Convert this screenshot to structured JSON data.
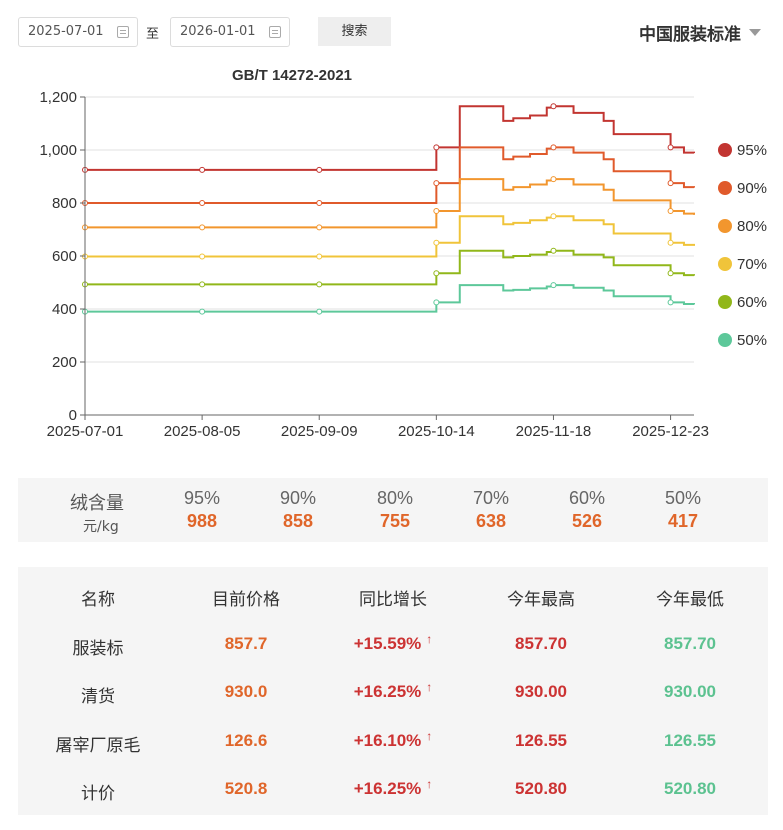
{
  "filters": {
    "start_date": "2025-07-01",
    "range_separator": "至",
    "end_date": "2026-01-01",
    "search_label": "搜索",
    "standard_select": "中国服装标准"
  },
  "chart_data": {
    "type": "line",
    "title": "GB/T 14272-2021",
    "xlabel": "",
    "ylabel": "",
    "ylim": [
      0,
      1200
    ],
    "yticks": [
      0,
      200,
      400,
      600,
      800,
      1000,
      1200
    ],
    "ytick_labels": [
      "0",
      "200",
      "400",
      "600",
      "800",
      "1,000",
      "1,200"
    ],
    "xlim": [
      "2025-07-01",
      "2025-12-30"
    ],
    "xtick_labels": [
      "2025-07-01",
      "2025-08-05",
      "2025-09-09",
      "2025-10-14",
      "2025-11-18",
      "2025-12-23"
    ],
    "step": true,
    "grid": true,
    "legend_position": "right",
    "x": [
      "2025-07-01",
      "2025-10-14",
      "2025-10-21",
      "2025-10-26",
      "2025-11-03",
      "2025-11-06",
      "2025-11-11",
      "2025-11-16",
      "2025-11-18",
      "2025-11-24",
      "2025-12-03",
      "2025-12-06",
      "2025-12-23",
      "2025-12-27",
      "2025-12-30"
    ],
    "series": [
      {
        "name": "95%",
        "color": "#c23531",
        "values": [
          925,
          1010,
          1165,
          1165,
          1110,
          1120,
          1130,
          1160,
          1165,
          1140,
          1110,
          1060,
          1010,
          990,
          988
        ]
      },
      {
        "name": "90%",
        "color": "#e05a2b",
        "values": [
          800,
          875,
          1010,
          1010,
          965,
          975,
          985,
          1005,
          1010,
          990,
          965,
          920,
          875,
          860,
          858
        ]
      },
      {
        "name": "80%",
        "color": "#f2962e",
        "values": [
          708,
          770,
          890,
          890,
          850,
          860,
          870,
          885,
          890,
          870,
          850,
          810,
          770,
          760,
          755
        ]
      },
      {
        "name": "70%",
        "color": "#f0c43a",
        "values": [
          598,
          650,
          750,
          750,
          720,
          725,
          735,
          745,
          750,
          735,
          720,
          685,
          650,
          642,
          638
        ]
      },
      {
        "name": "60%",
        "color": "#91b71a",
        "values": [
          493,
          535,
          620,
          620,
          595,
          600,
          605,
          615,
          620,
          605,
          595,
          565,
          535,
          528,
          526
        ]
      },
      {
        "name": "50%",
        "color": "#5dc89a",
        "values": [
          390,
          425,
          490,
          490,
          470,
          472,
          478,
          485,
          490,
          480,
          470,
          448,
          425,
          419,
          417
        ]
      }
    ]
  },
  "summary": {
    "label": "绒含量",
    "unit": "元/kg",
    "items": [
      {
        "pct": "95%",
        "value": "988"
      },
      {
        "pct": "90%",
        "value": "858"
      },
      {
        "pct": "80%",
        "value": "755"
      },
      {
        "pct": "70%",
        "value": "638"
      },
      {
        "pct": "60%",
        "value": "526"
      },
      {
        "pct": "50%",
        "value": "417"
      }
    ]
  },
  "table": {
    "headers": [
      "名称",
      "目前价格",
      "同比增长",
      "今年最高",
      "今年最低"
    ],
    "arrow": "↑",
    "rows": [
      {
        "name": "服装标",
        "current": "857.7",
        "yoy": "+15.59%",
        "high": "857.70",
        "low": "857.70"
      },
      {
        "name": "清货",
        "current": "930.0",
        "yoy": "+16.25%",
        "high": "930.00",
        "low": "930.00"
      },
      {
        "name": "屠宰厂原毛",
        "current": "126.6",
        "yoy": "+16.10%",
        "high": "126.55",
        "low": "126.55"
      },
      {
        "name": "计价",
        "current": "520.8",
        "yoy": "+16.25%",
        "high": "520.80",
        "low": "520.80"
      }
    ]
  }
}
